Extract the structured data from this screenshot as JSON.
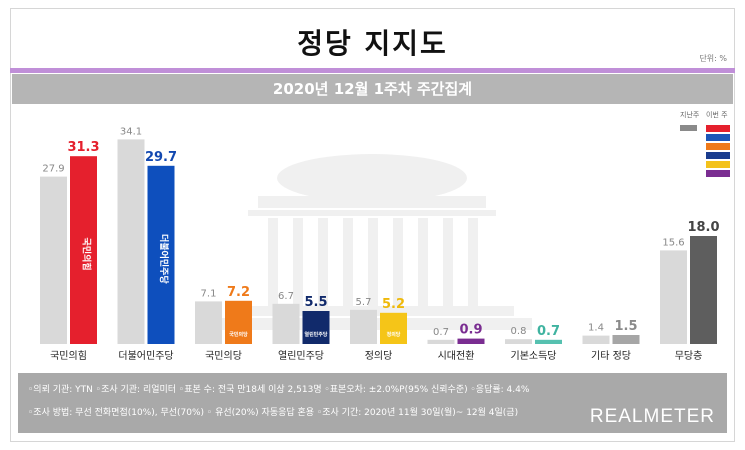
{
  "title": "정당 지지도",
  "unit": "단위: %",
  "subtitle": "2020년 12월 1주차 주간집계",
  "legend": {
    "prev_label": "지난주",
    "curr_label": "이번 주",
    "prev_color": "#8a8a8a",
    "curr_colors": [
      "#e5202d",
      "#1c56b8",
      "#ef7a1a",
      "#1a3c8e",
      "#f3c21b",
      "#7a2d91"
    ]
  },
  "chart_data": {
    "type": "bar",
    "title": "2020년 12월 1주차 주간집계",
    "categories": [
      "국민의힘",
      "더불어민주당",
      "국민의당",
      "열린민주당",
      "정의당",
      "시대전환",
      "기본소득당",
      "기타 정당",
      "무당층"
    ],
    "series": [
      {
        "name": "지난주",
        "values": [
          27.9,
          34.1,
          7.1,
          6.7,
          5.7,
          0.7,
          0.8,
          1.4,
          15.6
        ]
      },
      {
        "name": "이번 주",
        "values": [
          31.3,
          29.7,
          7.2,
          5.5,
          5.2,
          0.9,
          0.7,
          1.5,
          18.0
        ]
      }
    ],
    "colors": {
      "previous": "#d9d9d9",
      "current": [
        "#e5202d",
        "#0e4fbd",
        "#ef7a1a",
        "#112a6b",
        "#f5c518",
        "#7a2d91",
        "#56c1b0",
        "#a6a6a6",
        "#5e5e5e"
      ],
      "label": [
        "#e5202d",
        "#1248b0",
        "#ef7a1a",
        "#112a6b",
        "#efb90a",
        "#7a2d91",
        "#3fb3a0",
        "#8a8a8a",
        "#444444"
      ]
    },
    "ylim": [
      0,
      40
    ],
    "grid": false,
    "legend_position": "top-right"
  },
  "logos": [
    "국민의힘",
    "더불어민주당",
    "국민의당",
    "열린민주당",
    "정의당"
  ],
  "footer": {
    "line1": "◦의뢰 기관: YTN ◦조사 기관: 리얼미터 ◦표본 수: 전국 만18세 이상 2,513명 ◦표본오차: ±2.0%P(95% 신뢰수준) ◦응답률: 4.4%",
    "line2": "◦조사 방법: 무선 전화면접(10%), 무선(70%) ◦ 유선(20%) 자동응답 혼용 ◦조사 기간: 2020년 11월 30일(월)~ 12월 4일(금)",
    "brand": "REALMETER"
  }
}
